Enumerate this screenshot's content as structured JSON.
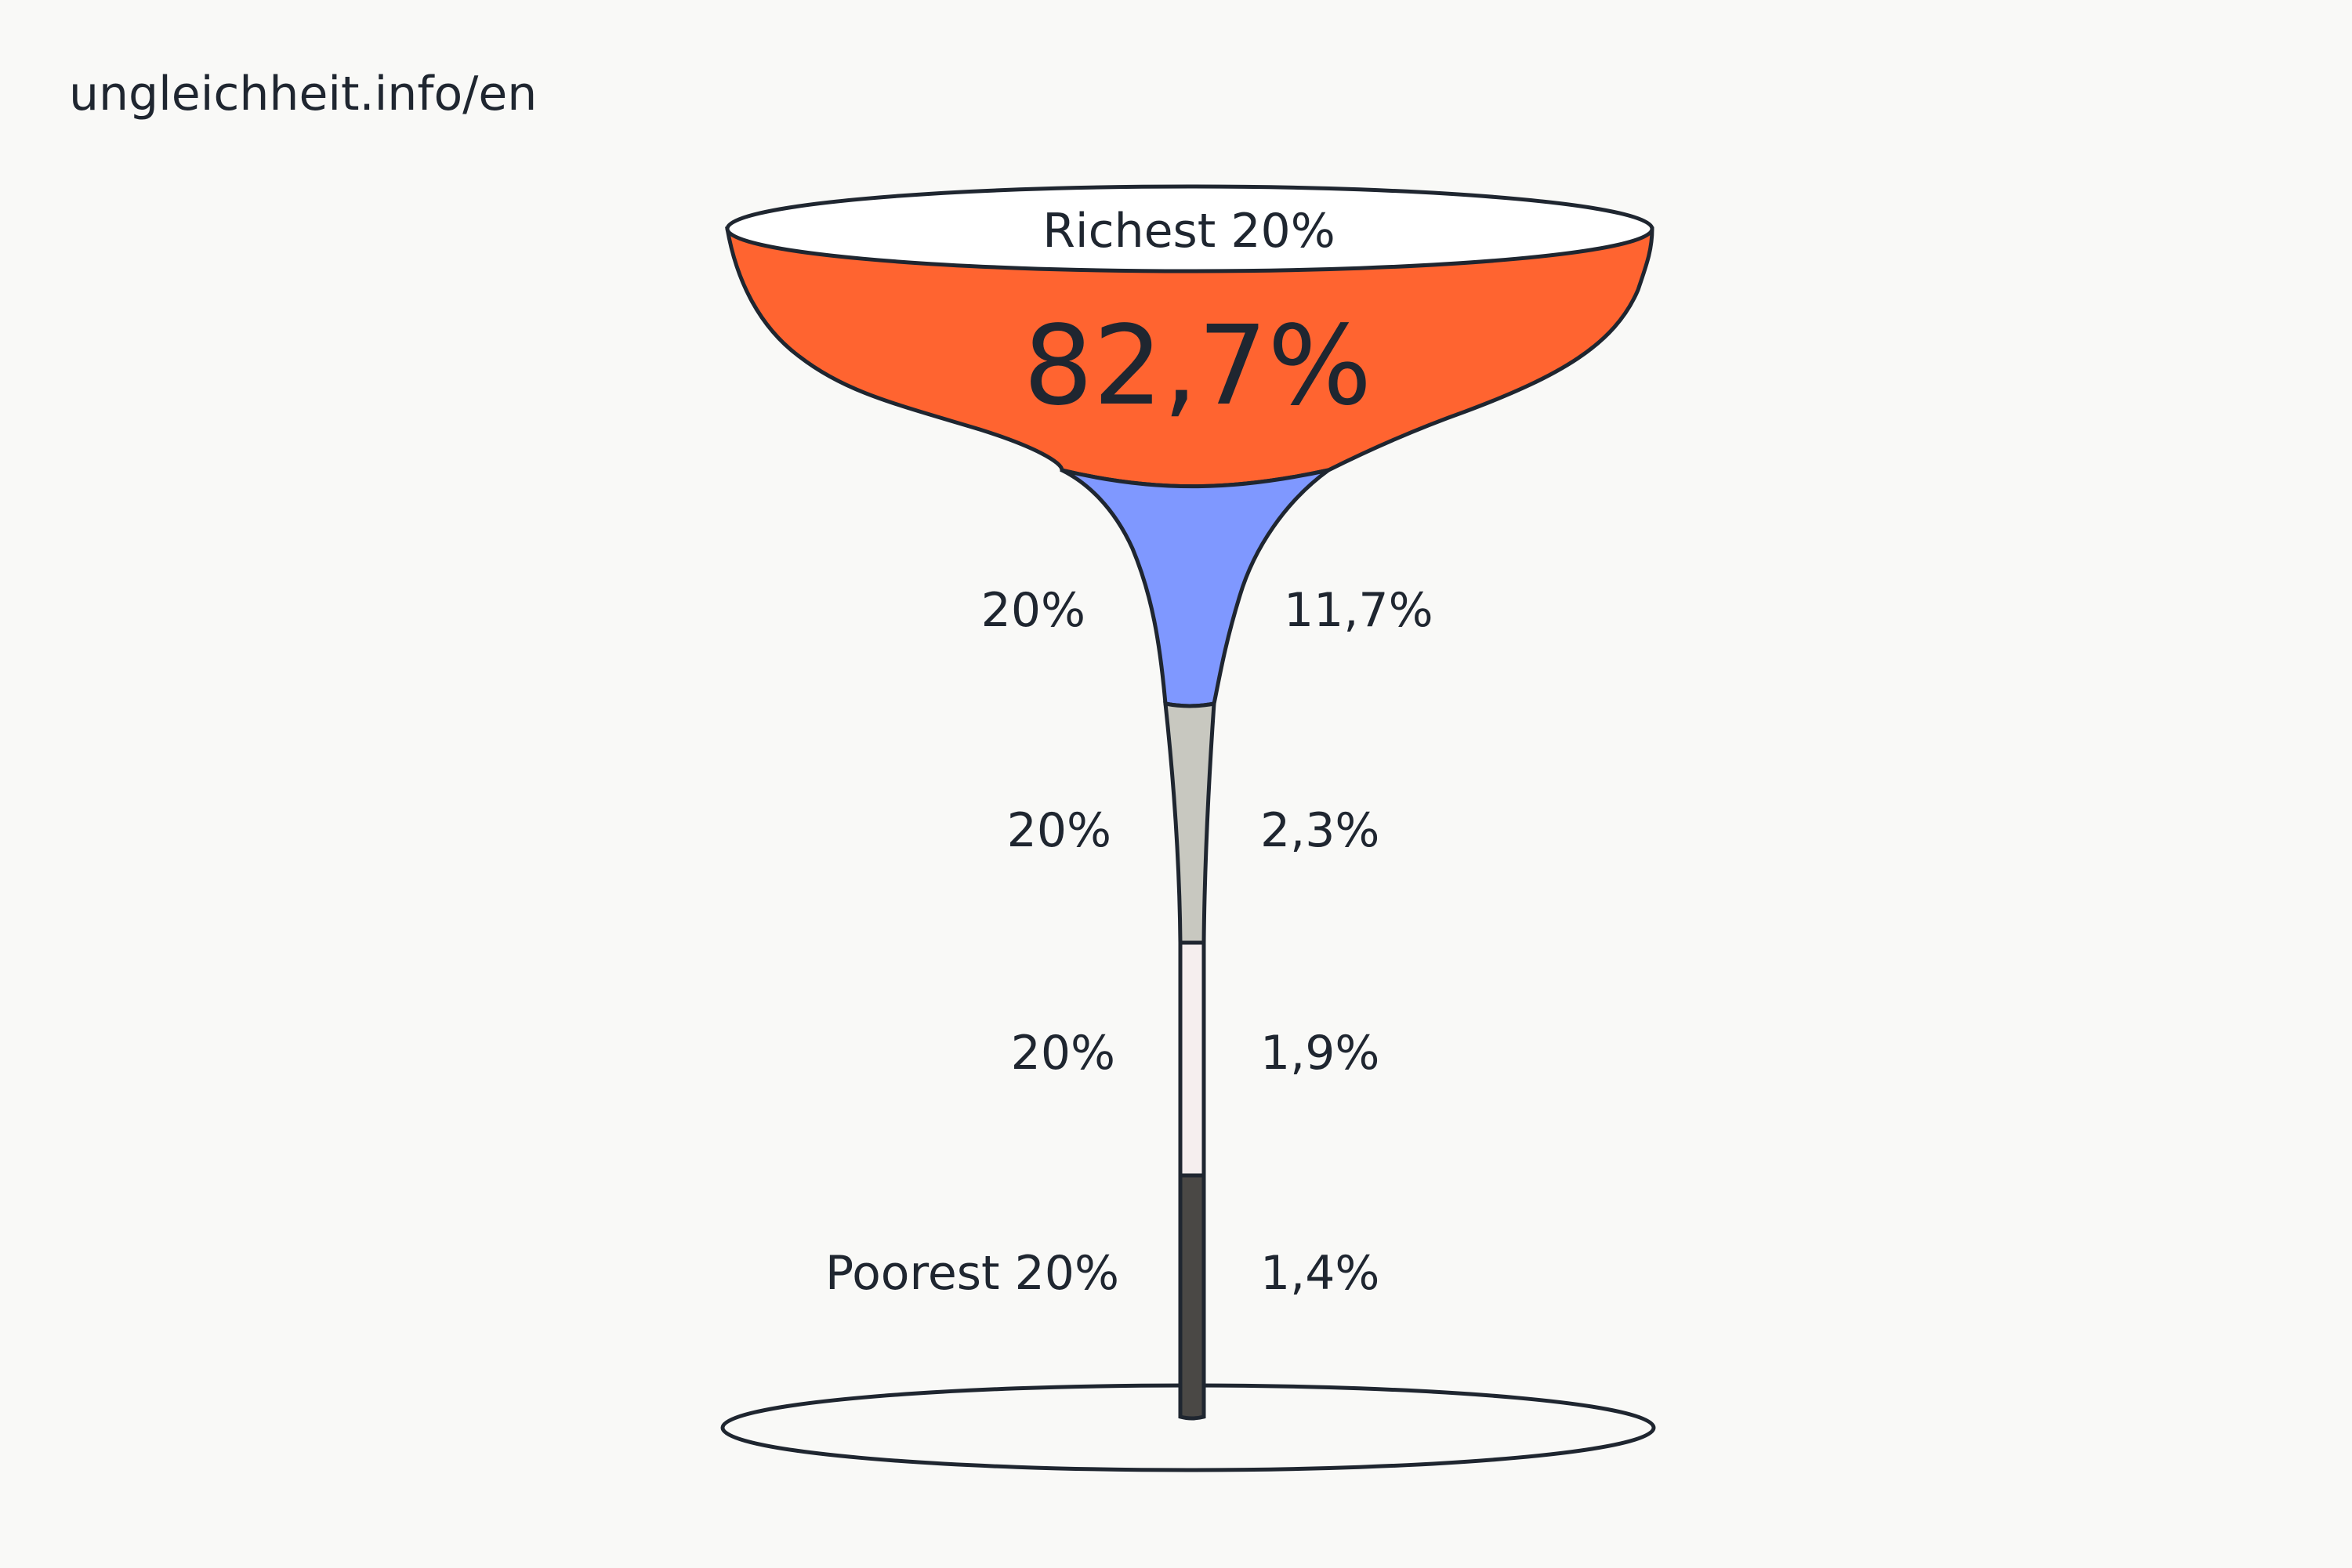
{
  "source": "ungleichheit.info/en",
  "chart_data": {
    "type": "bar",
    "orientation": "funnel-glass",
    "categories": [
      "Richest 20%",
      "20%",
      "20%",
      "20%",
      "Poorest 20%"
    ],
    "values": [
      82.7,
      11.7,
      2.3,
      1.9,
      1.4
    ],
    "value_labels": [
      "82,7%",
      "11,7%",
      "2,3%",
      "1,9%",
      "1,4%"
    ],
    "colors": [
      "#ff6430",
      "#7f98ff",
      "#c8c8c0",
      "#f5eeee",
      "#4a4845"
    ],
    "outline_color": "#1f2630",
    "title": "",
    "xlabel": "",
    "ylabel": ""
  }
}
